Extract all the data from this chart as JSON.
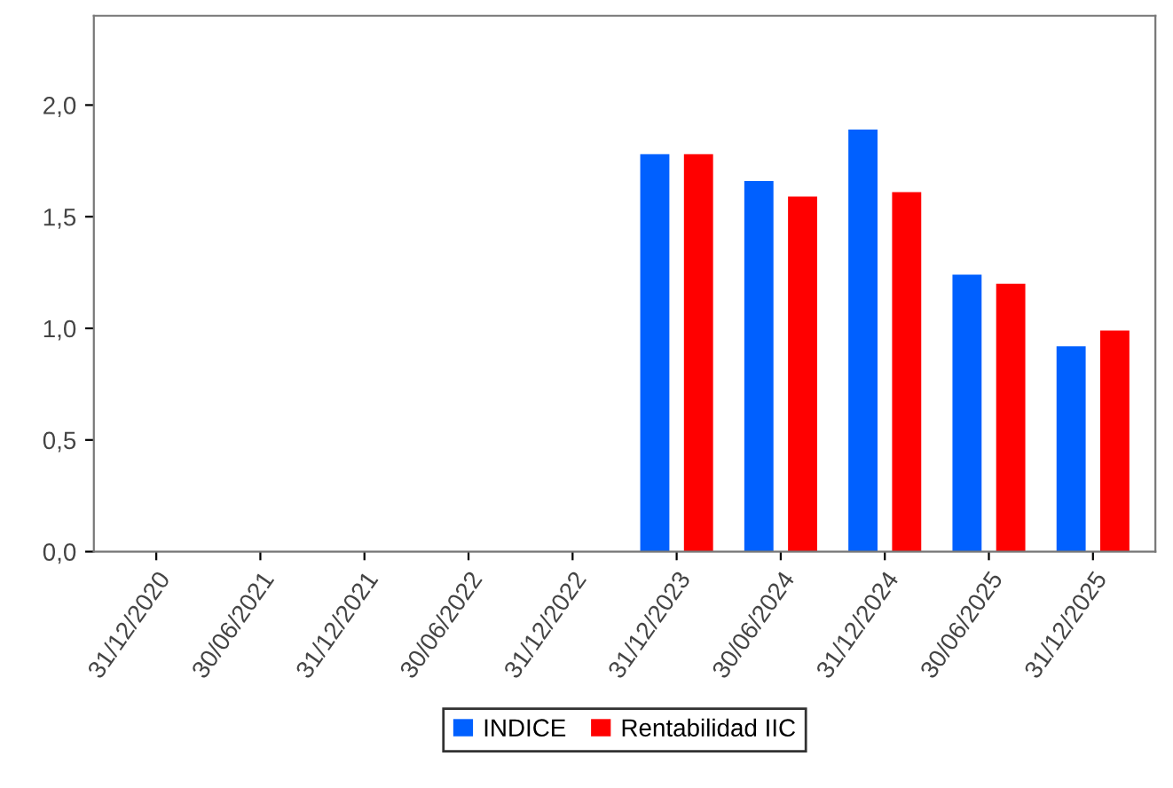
{
  "chart_data": {
    "type": "bar",
    "categories": [
      "31/12/2020",
      "30/06/2021",
      "31/12/2021",
      "30/06/2022",
      "31/12/2022",
      "31/12/2023",
      "30/06/2024",
      "31/12/2024",
      "30/06/2025",
      "31/12/2025"
    ],
    "series": [
      {
        "name": "INDICE",
        "color": "#0060ff",
        "values": [
          null,
          null,
          null,
          null,
          null,
          1.78,
          1.66,
          1.89,
          1.24,
          0.92
        ]
      },
      {
        "name": "Rentabilidad IIC",
        "color": "#ff0000",
        "values": [
          null,
          null,
          null,
          null,
          null,
          1.78,
          1.59,
          1.61,
          1.2,
          0.99
        ]
      }
    ],
    "ylim": [
      0,
      2.4
    ],
    "yticks": [
      {
        "value": 0,
        "label": "0,0"
      },
      {
        "value": 0.5,
        "label": "0,5"
      },
      {
        "value": 1.0,
        "label": "1,0"
      },
      {
        "value": 1.5,
        "label": "1,5"
      },
      {
        "value": 2.0,
        "label": "2,0"
      }
    ],
    "grid": false,
    "legend": "bottom"
  }
}
